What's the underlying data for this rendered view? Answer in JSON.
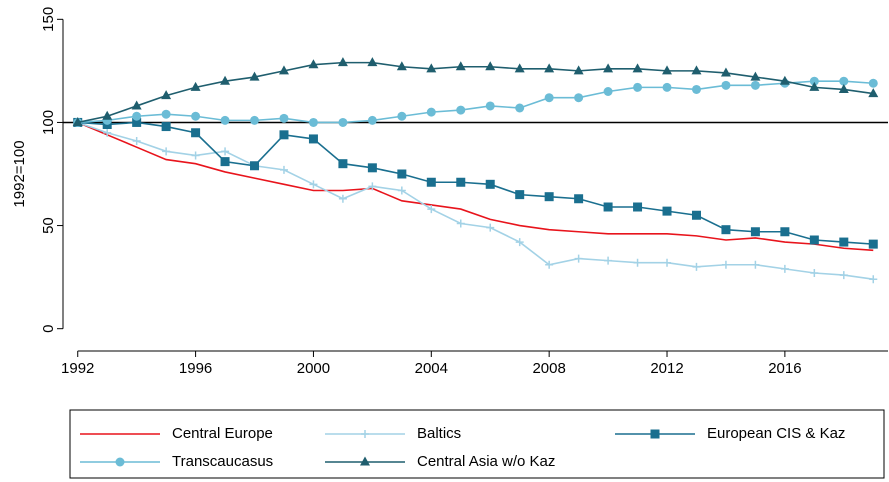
{
  "chart_data": {
    "type": "line",
    "y_label": "1992=100",
    "x": [
      1992,
      1993,
      1994,
      1995,
      1996,
      1997,
      1998,
      1999,
      2000,
      2001,
      2002,
      2003,
      2004,
      2005,
      2006,
      2007,
      2008,
      2009,
      2010,
      2011,
      2012,
      2013,
      2014,
      2015,
      2016,
      2017,
      2018,
      2019
    ],
    "xlim": [
      1991.5,
      2019.5
    ],
    "xticks": [
      1992,
      1996,
      2000,
      2004,
      2008,
      2012,
      2016
    ],
    "ylim": [
      -5,
      155
    ],
    "yticks": [
      0,
      50,
      100,
      150
    ],
    "reference_line": 100,
    "grid": false,
    "series": [
      {
        "name": "Central Europe",
        "color": "#e8141c",
        "marker": "none",
        "values": [
          100,
          94,
          88,
          82,
          80,
          76,
          73,
          70,
          67,
          67,
          68,
          62,
          60,
          58,
          53,
          50,
          48,
          47,
          46,
          46,
          46,
          45,
          43,
          44,
          42,
          41,
          39,
          38
        ]
      },
      {
        "name": "Baltics",
        "color": "#a3d2e6",
        "marker": "plus",
        "values": [
          100,
          95,
          91,
          86,
          84,
          86,
          79,
          77,
          70,
          63,
          69,
          67,
          58,
          51,
          49,
          42,
          31,
          34,
          33,
          32,
          32,
          30,
          31,
          31,
          29,
          27,
          26,
          24
        ]
      },
      {
        "name": "European CIS & Kaz",
        "color": "#1a6f8f",
        "marker": "square",
        "values": [
          100,
          99,
          100,
          98,
          95,
          81,
          79,
          94,
          92,
          80,
          78,
          75,
          71,
          71,
          70,
          65,
          64,
          63,
          59,
          59,
          57,
          55,
          48,
          47,
          47,
          43,
          42,
          41
        ]
      },
      {
        "name": "Transcaucasus",
        "color": "#6bbcd6",
        "marker": "circle",
        "values": [
          100,
          101,
          103,
          104,
          103,
          101,
          101,
          102,
          100,
          100,
          101,
          103,
          105,
          106,
          108,
          107,
          112,
          112,
          115,
          117,
          117,
          116,
          118,
          118,
          119,
          120,
          120,
          119
        ]
      },
      {
        "name": "Central Asia w/o Kaz",
        "color": "#1f5e6e",
        "marker": "triangle",
        "values": [
          100,
          103,
          108,
          113,
          117,
          120,
          122,
          125,
          128,
          129,
          129,
          127,
          126,
          127,
          127,
          126,
          126,
          125,
          126,
          126,
          125,
          125,
          124,
          122,
          120,
          117,
          116,
          114
        ]
      }
    ]
  }
}
